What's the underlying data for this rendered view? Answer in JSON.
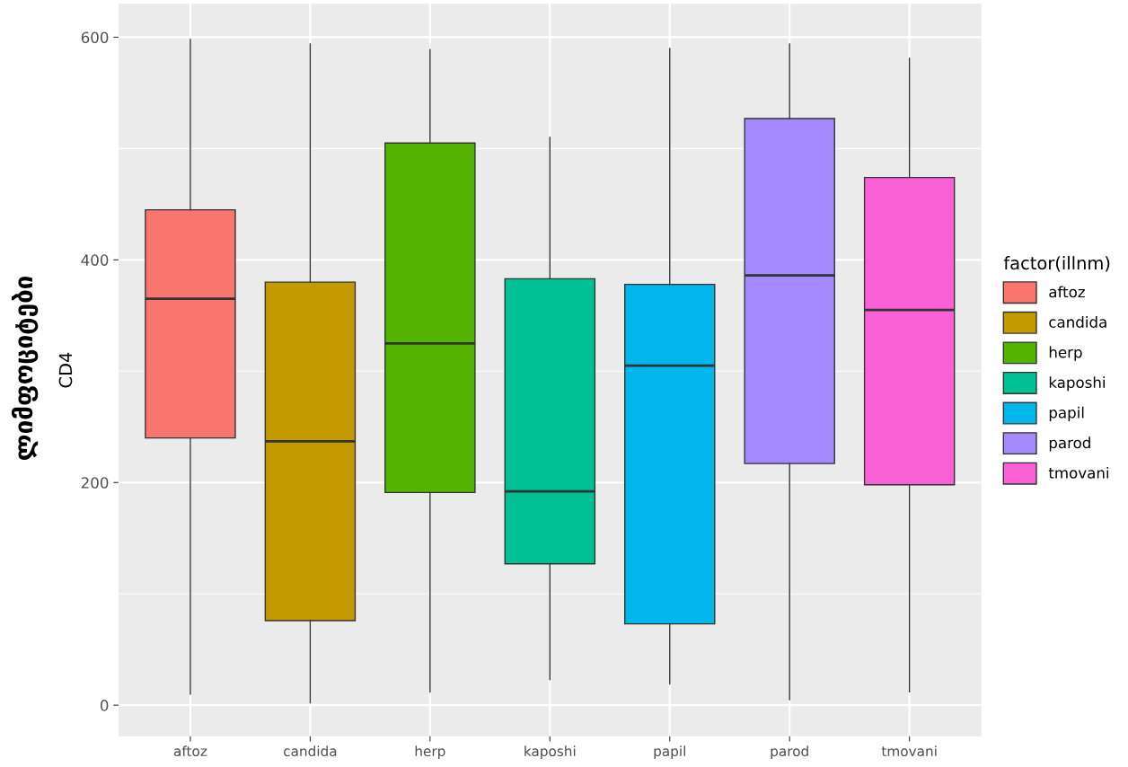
{
  "chart_data": {
    "type": "box",
    "ylabel": "CD4",
    "legend_title": "factor(illnm)",
    "annotations": [
      "ლიმფოციტები"
    ],
    "categories": [
      "aftoz",
      "candida",
      "herp",
      "kaposhi",
      "papil",
      "parod",
      "tmovani"
    ],
    "series": [
      {
        "name": "aftoz",
        "color": "#f8766d",
        "boxes": [
          {
            "low": 10,
            "q1": 240,
            "median": 365,
            "q3": 445,
            "high": 598
          },
          null,
          null,
          null,
          null,
          null,
          null
        ]
      },
      {
        "name": "candida",
        "color": "#c49a00",
        "boxes": [
          null,
          {
            "low": 2,
            "q1": 76,
            "median": 237,
            "q3": 380,
            "high": 594
          },
          null,
          null,
          null,
          null,
          null
        ]
      },
      {
        "name": "herp",
        "color": "#53b400",
        "boxes": [
          null,
          null,
          {
            "low": 12,
            "q1": 191,
            "median": 325,
            "q3": 505,
            "high": 589
          },
          null,
          null,
          null,
          null
        ]
      },
      {
        "name": "kaposhi",
        "color": "#00c094",
        "boxes": [
          null,
          null,
          null,
          {
            "low": 23,
            "q1": 127,
            "median": 192,
            "q3": 383,
            "high": 510
          },
          null,
          null,
          null
        ]
      },
      {
        "name": "papil",
        "color": "#00b6eb",
        "boxes": [
          null,
          null,
          null,
          null,
          {
            "low": 19,
            "q1": 73,
            "median": 305,
            "q3": 378,
            "high": 590
          },
          null,
          null
        ]
      },
      {
        "name": "parod",
        "color": "#a58aff",
        "boxes": [
          null,
          null,
          null,
          null,
          null,
          {
            "low": 5,
            "q1": 217,
            "median": 386,
            "q3": 527,
            "high": 594
          },
          null
        ]
      },
      {
        "name": "tmovani",
        "color": "#fb61d7",
        "boxes": [
          null,
          null,
          null,
          null,
          null,
          null,
          {
            "low": 12,
            "q1": 198,
            "median": 355,
            "q3": 474,
            "high": 581
          }
        ]
      }
    ],
    "ylim": [
      -28,
      630
    ],
    "yticks": [
      0,
      {
        "value": 100,
        "label": null
      },
      200,
      {
        "value": 300,
        "label": null
      },
      400,
      {
        "value": 500,
        "label": null
      },
      600
    ],
    "grid": true,
    "legend": "right"
  }
}
